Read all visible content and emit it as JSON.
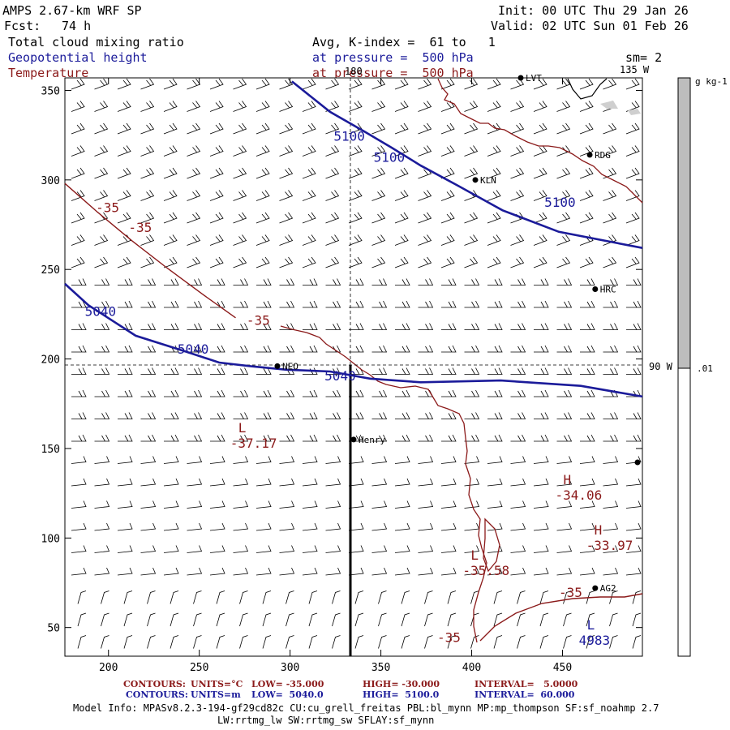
{
  "header": {
    "model": "AMPS 2.67-km WRF SP",
    "forecast_label": "Fcst:",
    "forecast_value": "74 h",
    "init": "Init: 00 UTC Thu 29 Jan 26",
    "valid": "Valid: 02 UTC Sun 01 Feb 26",
    "field1": "Total cloud mixing ratio",
    "field2": "Geopotential height",
    "field3": "Temperature",
    "avg": "Avg, K-index =  61 to   1",
    "pressure1": "at pressure =  500 hPa",
    "pressure2": "at pressure =  500 hPa",
    "sm": "sm= 2"
  },
  "colors": {
    "height": "#1b1b9a",
    "temperature": "#8b1a1a",
    "barb": "#000000",
    "colorbar_fill": "#bdbdbd"
  },
  "colorbar": {
    "unit": "g kg-1",
    "low_label": ".01"
  },
  "meridians": {
    "m180": "180",
    "m135": "135 W",
    "m90": "90 W"
  },
  "stations": [
    "LVT",
    "RDG",
    "KLN",
    "HRC",
    "NEO",
    "Henry",
    "AG2"
  ],
  "footer": {
    "line1": {
      "label": "CONTOURS:",
      "units": "UNITS=°C",
      "low": "LOW= -35.000",
      "high": "HIGH= -30.000",
      "interval": "INTERVAL=   5.0000"
    },
    "line2": {
      "label": "CONTOURS:",
      "units": "UNITS=m",
      "low": "LOW=  5040.0",
      "high": "HIGH=  5100.0",
      "interval": "INTERVAL=  60.000"
    },
    "info1": "Model Info: MPASv8.2.3-194-gf29cd82c CU:cu_grell_freitas PBL:bl_mynn MP:mp_thompson SF:sf_noahmp 2.7",
    "info2": "LW:rrtmg_lw SW:rrtmg_sw SFLAY:sf_mynn"
  },
  "chart_data": {
    "type": "contour",
    "title": "Total cloud mixing ratio / Geopotential height / Temperature at 500 hPa",
    "xlim": [
      176,
      494
    ],
    "ylim": [
      34,
      357
    ],
    "x_ticks": [
      200,
      250,
      300,
      350,
      400,
      450
    ],
    "y_ticks": [
      50,
      100,
      150,
      200,
      250,
      300,
      350
    ],
    "height_labels": [
      {
        "text": "5100",
        "x": 324,
        "y": 322
      },
      {
        "text": "5100",
        "x": 346,
        "y": 310
      },
      {
        "text": "5100",
        "x": 440,
        "y": 285
      },
      {
        "text": "5040",
        "x": 187,
        "y": 224
      },
      {
        "text": "5040",
        "x": 238,
        "y": 203
      },
      {
        "text": "5040",
        "x": 319,
        "y": 188
      }
    ],
    "height_lines": [
      {
        "label": "5100 north",
        "x": [
          301,
          322,
          341,
          356,
          372,
          392,
          417,
          448,
          494
        ],
        "y": [
          355,
          338,
          327,
          318,
          308,
          297,
          283,
          271,
          262
        ]
      },
      {
        "label": "5040",
        "x": [
          176,
          189,
          215,
          243,
          261,
          278,
          298,
          322,
          344,
          372,
          416,
          460,
          494
        ],
        "y": [
          242,
          230,
          213,
          204,
          198,
          196,
          194,
          193,
          189,
          187,
          188,
          185,
          179
        ]
      }
    ],
    "temperature_labels": [
      {
        "text": "-35",
        "x": 193,
        "y": 282
      },
      {
        "text": "-35",
        "x": 211,
        "y": 271
      },
      {
        "text": "-35",
        "x": 276,
        "y": 219
      },
      {
        "text": "-35",
        "x": 448,
        "y": 67
      },
      {
        "text": "-35",
        "x": 381,
        "y": 42
      }
    ],
    "temperature_line": {
      "label": "-35",
      "x": [
        176,
        194,
        213,
        232,
        252,
        270
      ],
      "y": [
        298,
        282,
        266,
        251,
        236,
        223
      ]
    },
    "extrema": [
      {
        "kind": "L",
        "value": "-37.17",
        "x": 267,
        "y": 159,
        "field": "temperature"
      },
      {
        "kind": "H",
        "value": "-34.06",
        "x": 446,
        "y": 130,
        "field": "temperature"
      },
      {
        "kind": "H",
        "value": "-33.97",
        "x": 463,
        "y": 102,
        "field": "temperature"
      },
      {
        "kind": "L",
        "value": "-35.58",
        "x": 395,
        "y": 88,
        "field": "temperature"
      },
      {
        "kind": "L",
        "value": "4983",
        "x": 459,
        "y": 49,
        "field": "height"
      }
    ],
    "station_points": [
      {
        "name": "LVT",
        "x": 427,
        "y": 357
      },
      {
        "name": "RDG",
        "x": 465,
        "y": 314
      },
      {
        "name": "KLN",
        "x": 402,
        "y": 300
      },
      {
        "name": "HRC",
        "x": 468,
        "y": 239
      },
      {
        "name": "NEO",
        "x": 293,
        "y": 196
      },
      {
        "name": "Henry",
        "x": 335,
        "y": 155
      },
      {
        "name": "AG2",
        "x": 468,
        "y": 72
      }
    ],
    "meridian_180_x": 333,
    "crosshair_y": 195,
    "colorbar_range": [
      0.01,
      1.0
    ]
  }
}
